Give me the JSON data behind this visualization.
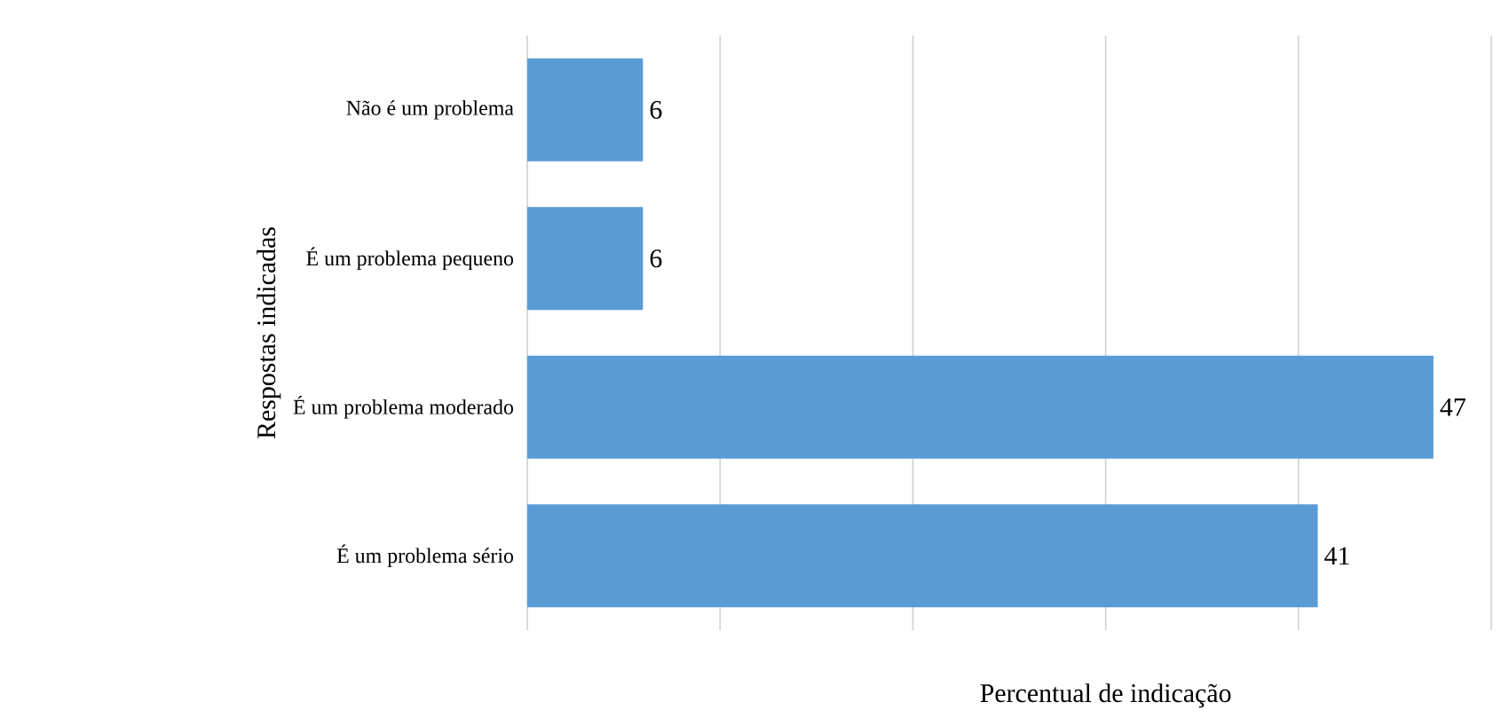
{
  "chart_data": {
    "type": "bar",
    "orientation": "horizontal",
    "xlabel": "Percentual de indicação",
    "ylabel": "Respostas indicadas",
    "categories": [
      "Não é um problema",
      "É um problema pequeno",
      "É um problema moderado",
      "É um problema sério"
    ],
    "values": [
      6,
      6,
      47,
      41
    ],
    "color": "#5b9bd5",
    "data_labels": true,
    "xlim": [
      0,
      50
    ],
    "xticks": [
      {
        "value": 0,
        "label": null
      },
      {
        "value": 10,
        "label": null
      },
      {
        "value": 20,
        "label": null
      },
      {
        "value": 30,
        "label": null
      },
      {
        "value": 40,
        "label": null
      },
      {
        "value": 50,
        "label": null
      }
    ],
    "grid": "x",
    "tick_labels": "y"
  }
}
